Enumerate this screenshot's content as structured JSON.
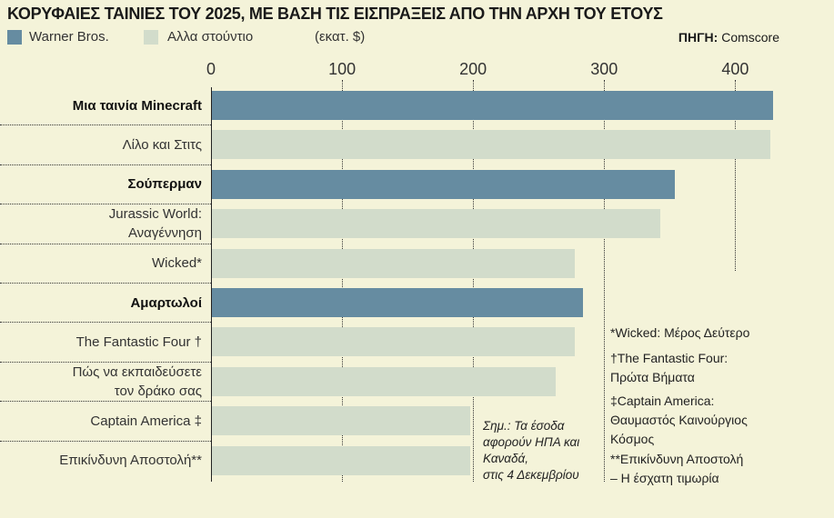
{
  "chart_data": {
    "type": "bar",
    "orientation": "horizontal",
    "title": "ΚΟΡΥΦΑΙΕΣ ΤΑΙΝΙΕΣ ΤΟΥ 2025, ΜΕ ΒΑΣΗ ΤΙΣ ΕΙΣΠΡΑΞΕΙΣ ΑΠΟ ΤΗΝ ΑΡΧΗ ΤΟΥ ΕΤΟΥΣ",
    "unit": "(εκατ. $)",
    "source_label": "ΠΗΓΗ:",
    "source": "Comscore",
    "legend": [
      {
        "name": "Warner Bros.",
        "color": "#668ca1"
      },
      {
        "name": "Αλλα στούντιο",
        "color": "#d2dccb"
      }
    ],
    "xlim": [
      0,
      430
    ],
    "ticks": [
      "0",
      "100",
      "200",
      "300",
      "400"
    ],
    "tick_values": [
      0,
      100,
      200,
      300,
      400
    ],
    "categories": [
      {
        "label": "Μια ταινία Minecraft",
        "value": 428,
        "warner": true
      },
      {
        "label": "Λίλο και Στιτς",
        "value": 426,
        "warner": false
      },
      {
        "label": "Σούπερμαν",
        "value": 353,
        "warner": true
      },
      {
        "label": "Jurassic World:\nΑναγέννηση",
        "value": 342,
        "warner": false
      },
      {
        "label": "Wicked*",
        "value": 277,
        "warner": false
      },
      {
        "label": "Αμαρτωλοί",
        "value": 283,
        "warner": true
      },
      {
        "label": "The Fantastic Four †",
        "value": 277,
        "warner": false
      },
      {
        "label": "Πώς να εκπαιδεύσετε\nτον δράκο σας",
        "value": 262,
        "warner": false
      },
      {
        "label": "Captain America ‡",
        "value": 197,
        "warner": false
      },
      {
        "label": "Επικίνδυνη Αποστολή**",
        "value": 197,
        "warner": false
      }
    ],
    "footnotes": [
      "*Wicked: Μέρος Δεύτερο",
      "†The Fantastic Four:\nΠρώτα Βήματα",
      "‡Captain America:\nΘαυμαστός Καινούργιος\nΚόσμος",
      "**Επικίνδυνη Αποστολή\n– Η έσχατη τιμωρία"
    ],
    "note": "Σημ.: Τα έσοδα\nαφορούν ΗΠΑ και\nΚαναδά,\nστις 4 Δεκεμβρίου"
  }
}
